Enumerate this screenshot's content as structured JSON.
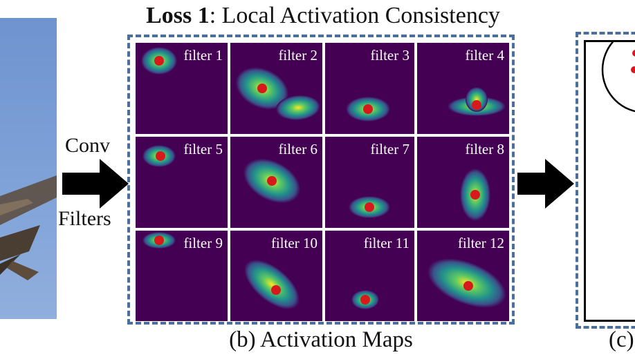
{
  "title": {
    "bold": "Loss 1",
    "rest": ": Local Activation Consistency"
  },
  "left_labels": {
    "top": "Conv",
    "bottom": "Filters"
  },
  "grid": {
    "filters": [
      {
        "label": "filter 1"
      },
      {
        "label": "filter 2"
      },
      {
        "label": "filter 3"
      },
      {
        "label": "filter 4"
      },
      {
        "label": "filter 5"
      },
      {
        "label": "filter 6"
      },
      {
        "label": "filter 7"
      },
      {
        "label": "filter 8"
      },
      {
        "label": "filter 9"
      },
      {
        "label": "filter 10"
      },
      {
        "label": "filter 11"
      },
      {
        "label": "filter 12"
      }
    ]
  },
  "captions": {
    "b": "(b) Activation Maps",
    "c": "(c)"
  },
  "colors": {
    "heatmap_bg": "#440154",
    "peak_dot": "#d7191c",
    "dashed_border": "#4a6f9c",
    "sky": "#7fa2d8"
  }
}
